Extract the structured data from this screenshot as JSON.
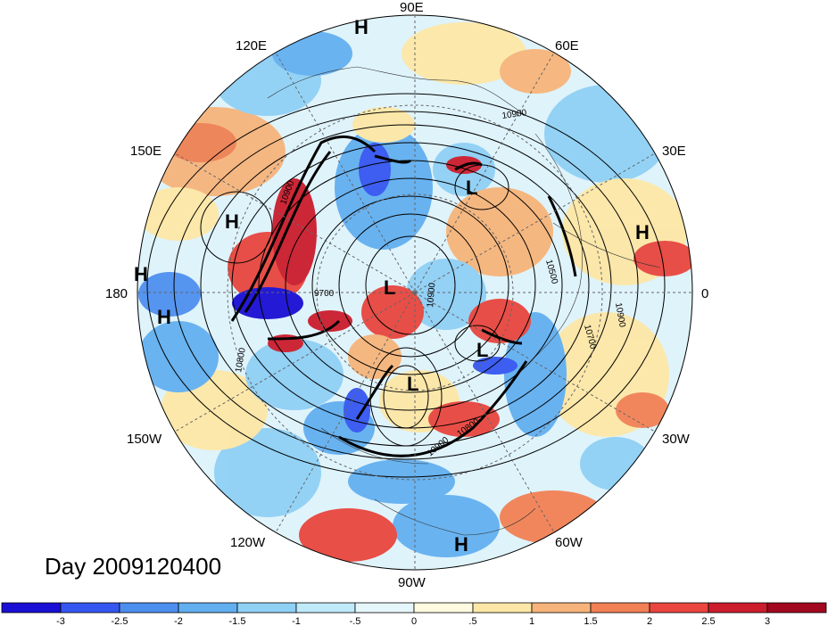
{
  "title": "Day 2009120400",
  "lon_labels": [
    "90E",
    "60E",
    "30E",
    "0",
    "30W",
    "60W",
    "90W",
    "120W",
    "150W",
    "180",
    "150E",
    "120E"
  ],
  "contour_labels": [
    "10900",
    "10900",
    "9700",
    "10800",
    "10900",
    "10500",
    "10900",
    "10800",
    "10700",
    "10900"
  ],
  "pressure_centers": [
    {
      "type": "H",
      "label": "H"
    },
    {
      "type": "H",
      "label": "H"
    },
    {
      "type": "H",
      "label": "H"
    },
    {
      "type": "H",
      "label": "H"
    },
    {
      "type": "H",
      "label": "H"
    },
    {
      "type": "H",
      "label": "H"
    },
    {
      "type": "L",
      "label": "L"
    },
    {
      "type": "L",
      "label": "L"
    },
    {
      "type": "L",
      "label": "L"
    },
    {
      "type": "L",
      "label": "L"
    }
  ],
  "colorbar": {
    "tick_labels": [
      "-3",
      "-2.5",
      "-2",
      "-1.5",
      "-1",
      "-.5",
      "0",
      ".5",
      "1",
      "1.5",
      "2",
      "2.5",
      "3"
    ],
    "colors": [
      "#1a0fd4",
      "#3557f0",
      "#4d8fef",
      "#62aff0",
      "#8fd0f5",
      "#bfeaf9",
      "#e6f7fc",
      "#fffbe0",
      "#fde7a6",
      "#f7b47a",
      "#f28055",
      "#e8463e",
      "#cc1d2d",
      "#a2081f"
    ]
  }
}
